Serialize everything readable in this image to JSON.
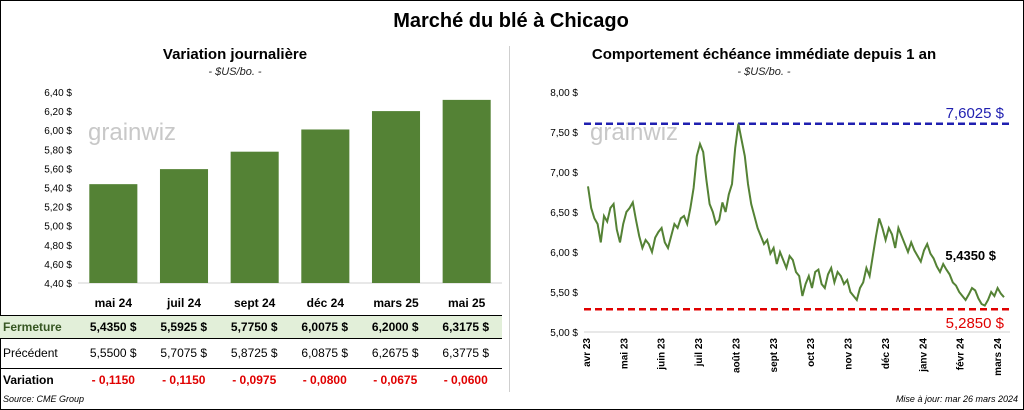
{
  "title": "Marché du blé à Chicago",
  "left": {
    "subtitle": "Variation journalière",
    "unit": "- $US/bo. -",
    "watermark": "grainwiz",
    "table": {
      "rows": [
        {
          "label": "Fermeture",
          "values": [
            "5,4350  $",
            "5,5925  $",
            "5,7750  $",
            "6,0075  $",
            "6,2000  $",
            "6,3175  $"
          ]
        },
        {
          "label": "Précédent",
          "values": [
            "5,5500  $",
            "5,7075  $",
            "5,8725  $",
            "6,0875  $",
            "6,2675  $",
            "6,3775  $"
          ]
        },
        {
          "label": "Variation",
          "values": [
            "- 0,1150",
            "- 0,1150",
            "- 0,0975",
            "- 0,0800",
            "- 0,0675",
            "- 0,0600"
          ]
        }
      ]
    }
  },
  "right": {
    "subtitle": "Comportement  échéance immédiate depuis 1 an",
    "unit": "- $US/bo. -",
    "watermark": "grainwiz",
    "high_label": "7,6025  $",
    "low_label": "5,2850  $",
    "last_label": "5,4350 $"
  },
  "footer": {
    "source": "Source: CME Group",
    "updated": "Mise à jour: mar 26 mars 2024"
  },
  "colors": {
    "bar": "#548235",
    "line": "#548235",
    "high_line": "#1f1fb0",
    "low_line": "#e00000"
  },
  "chart_data": [
    {
      "type": "bar",
      "categories": [
        "mai 24",
        "juil 24",
        "sept 24",
        "déc 24",
        "mars 25",
        "mai 25"
      ],
      "values": [
        5.435,
        5.5925,
        5.775,
        6.0075,
        6.2,
        6.3175
      ],
      "ylim": [
        4.4,
        6.4
      ],
      "yticks": [
        4.4,
        4.6,
        4.8,
        5.0,
        5.2,
        5.4,
        5.6,
        5.8,
        6.0,
        6.2,
        6.4
      ],
      "ytick_labels": [
        "4,40 $",
        "4,60 $",
        "4,80 $",
        "5,00 $",
        "5,20 $",
        "5,40 $",
        "5,60 $",
        "5,80 $",
        "6,00 $",
        "6,20 $",
        "6,40 $"
      ],
      "grid": false
    },
    {
      "type": "line",
      "x_labels": [
        "avr 23",
        "mai 23",
        "juin 23",
        "juil 23",
        "août 23",
        "sept 23",
        "oct 23",
        "nov 23",
        "déc 23",
        "janv 24",
        "févr 24",
        "mars 24"
      ],
      "ylim": [
        5.0,
        8.0
      ],
      "yticks": [
        5.0,
        5.5,
        6.0,
        6.5,
        7.0,
        7.5,
        8.0
      ],
      "ytick_labels": [
        "5,00 $",
        "5,50 $",
        "6,00 $",
        "6,50 $",
        "7,00 $",
        "7,50 $",
        "8,00 $"
      ],
      "high": 7.6025,
      "low": 5.285,
      "last": 5.435,
      "values": [
        6.82,
        6.55,
        6.42,
        6.35,
        6.12,
        6.45,
        6.38,
        6.55,
        6.6,
        6.28,
        6.12,
        6.35,
        6.5,
        6.55,
        6.62,
        6.4,
        6.2,
        6.05,
        6.15,
        6.1,
        6.0,
        6.18,
        6.25,
        6.3,
        6.12,
        6.05,
        6.2,
        6.35,
        6.3,
        6.42,
        6.45,
        6.35,
        6.55,
        6.8,
        7.2,
        7.35,
        7.25,
        6.9,
        6.6,
        6.5,
        6.35,
        6.4,
        6.62,
        6.5,
        6.72,
        6.85,
        7.3,
        7.6025,
        7.4,
        7.2,
        6.85,
        6.6,
        6.45,
        6.3,
        6.2,
        6.1,
        6.15,
        5.98,
        6.05,
        5.85,
        6.0,
        5.9,
        5.8,
        5.95,
        5.9,
        5.75,
        5.7,
        5.45,
        5.6,
        5.7,
        5.55,
        5.75,
        5.78,
        5.6,
        5.55,
        5.72,
        5.8,
        5.62,
        5.75,
        5.7,
        5.6,
        5.65,
        5.5,
        5.45,
        5.4,
        5.55,
        5.62,
        5.8,
        5.7,
        5.95,
        6.2,
        6.42,
        6.3,
        6.15,
        6.3,
        6.22,
        6.05,
        6.3,
        6.2,
        6.1,
        6.0,
        6.12,
        6.02,
        5.95,
        5.88,
        6.02,
        6.1,
        5.98,
        5.92,
        5.82,
        5.75,
        5.85,
        5.78,
        5.72,
        5.62,
        5.58,
        5.5,
        5.45,
        5.4,
        5.47,
        5.55,
        5.52,
        5.42,
        5.35,
        5.33,
        5.4,
        5.5,
        5.45,
        5.55,
        5.48,
        5.435
      ]
    }
  ]
}
